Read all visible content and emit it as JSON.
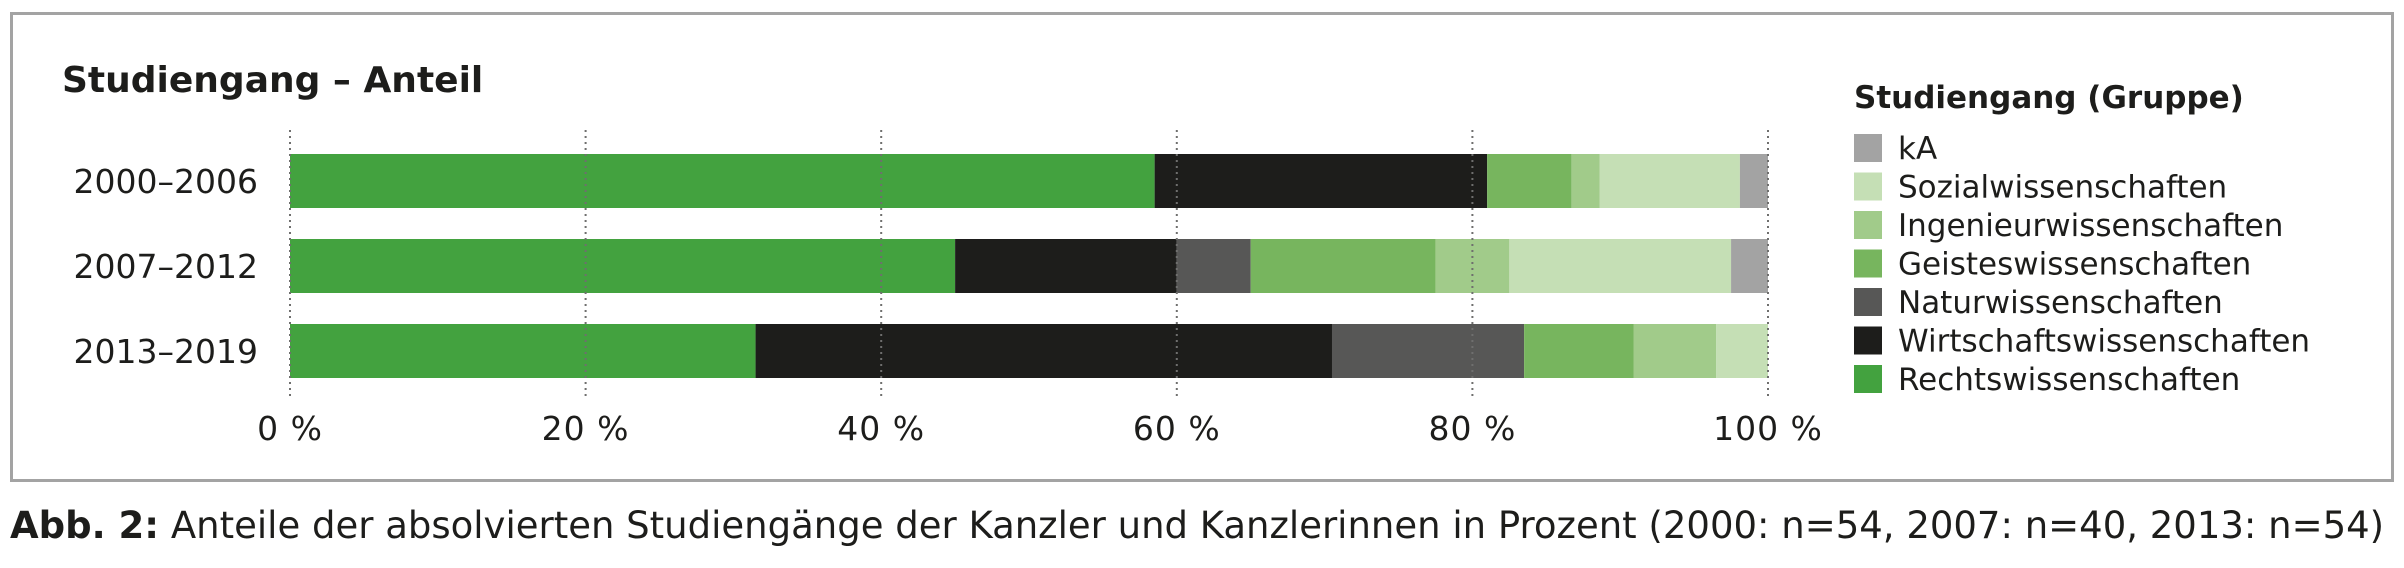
{
  "chart_data": {
    "type": "bar",
    "orientation": "horizontal",
    "stacked": true,
    "normalized": true,
    "title": "Studiengang – Anteil",
    "legend_title": "Studiengang (Gruppe)",
    "legend_position": "right",
    "categories": [
      "2000–2006",
      "2007–2012",
      "2013–2019"
    ],
    "series": [
      {
        "name": "Rechtswissenschaften",
        "color": "#43a23f",
        "values": [
          58.5,
          45.0,
          31.5
        ]
      },
      {
        "name": "Wirtschaftswissenschaften",
        "color": "#1d1d1b",
        "values": [
          22.5,
          15.0,
          39.0
        ]
      },
      {
        "name": "Naturwissenschaften",
        "color": "#575756",
        "values": [
          0.0,
          5.0,
          13.0
        ]
      },
      {
        "name": "Geisteswissenschaften",
        "color": "#77b55e",
        "values": [
          5.7,
          12.5,
          7.4
        ]
      },
      {
        "name": "Ingenieurwissenschaften",
        "color": "#a1cb8a",
        "values": [
          1.9,
          5.0,
          5.6
        ]
      },
      {
        "name": "Sozialwissenschaften",
        "color": "#c5dfb5",
        "values": [
          9.5,
          15.0,
          3.5
        ]
      },
      {
        "name": "kA",
        "color": "#a3a3a3",
        "values": [
          1.9,
          2.5,
          0.0
        ]
      }
    ],
    "legend_order": [
      "kA",
      "Sozialwissenschaften",
      "Ingenieurwissenschaften",
      "Geisteswissenschaften",
      "Naturwissenschaften",
      "Wirtschaftswissenschaften",
      "Rechtswissenschaften"
    ],
    "xlim": [
      0,
      100
    ],
    "xticks": [
      0,
      20,
      40,
      60,
      80,
      100
    ],
    "xtick_labels": [
      "0 %",
      "20 %",
      "40 %",
      "60 %",
      "80 %",
      "100 %"
    ],
    "grid": "vertical dotted"
  },
  "caption": {
    "lead": "Abb. 2:",
    "text": " Anteile der absolvierten Studiengänge der Kanzler und Kanzlerinnen in Prozent (2000: n=54, 2007: n=40, 2013: n=54)"
  }
}
